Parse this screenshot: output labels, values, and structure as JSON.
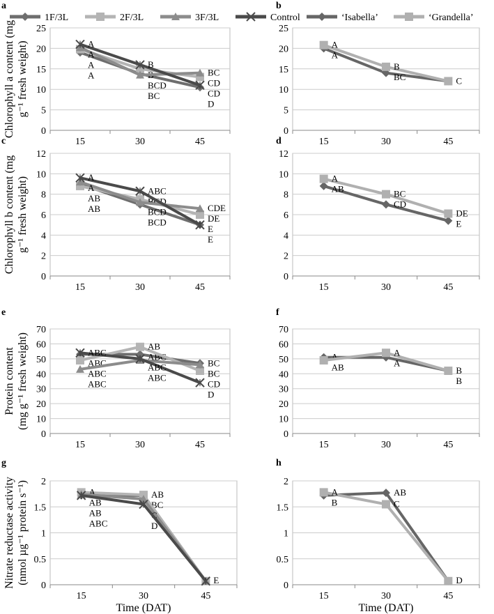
{
  "legend_main": [
    {
      "name": "1F/3L",
      "color": "#6e6e6e",
      "marker": "diamond"
    },
    {
      "name": "2F/3L",
      "color": "#b4b4b4",
      "marker": "square"
    },
    {
      "name": "3F/3L",
      "color": "#8c8c8c",
      "marker": "triangle"
    },
    {
      "name": "Control",
      "color": "#4a4a4a",
      "marker": "x"
    }
  ],
  "legend_cultivar": [
    {
      "name": "‘Isabella’",
      "color": "#666666",
      "marker": "diamond"
    },
    {
      "name": "‘Grandella’",
      "color": "#b0b0b0",
      "marker": "square"
    }
  ],
  "ylabels": {
    "a": [
      "Chlorophyll a content (mg",
      "g⁻¹ fresh weight)"
    ],
    "c": [
      "Chlorophyll b content (mg",
      "g⁻¹ fresh weight)"
    ],
    "e": [
      "Protein content",
      "(mg g⁻¹ fresh weight)"
    ],
    "g": [
      "Nitrate reductase activity",
      "(nmol µg⁻¹ protein s⁻¹)"
    ]
  },
  "xlabel": "Time (DAT)",
  "chart_data": [
    {
      "panel": "a",
      "type": "line",
      "x": [
        15,
        30,
        45
      ],
      "ylim": [
        0,
        25
      ],
      "yticks": [
        0,
        5,
        10,
        15,
        20,
        25
      ],
      "series": [
        {
          "name": "1F/3L",
          "values": [
            19,
            13.8,
            10.5
          ],
          "letters": [
            "A",
            "BCD",
            "D"
          ]
        },
        {
          "name": "2F/3L",
          "values": [
            19.8,
            15,
            13
          ],
          "letters": [
            "A",
            "B",
            "CD"
          ]
        },
        {
          "name": "3F/3L",
          "values": [
            20.2,
            13.5,
            14
          ],
          "letters": [
            "A",
            "BC",
            "BC"
          ]
        },
        {
          "name": "Control",
          "values": [
            21,
            16,
            11
          ],
          "letters": [
            "A",
            "B",
            "CD"
          ]
        }
      ]
    },
    {
      "panel": "b",
      "type": "line",
      "x": [
        15,
        30,
        45
      ],
      "ylim": [
        0,
        25
      ],
      "yticks": [
        0,
        5,
        10,
        15,
        20,
        25
      ],
      "series": [
        {
          "name": "‘Isabella’",
          "values": [
            20,
            14,
            12
          ],
          "letters": [
            "A",
            "BC",
            "C"
          ]
        },
        {
          "name": "‘Grandella’",
          "values": [
            20.8,
            15.5,
            12
          ],
          "letters": [
            "A",
            "B",
            ""
          ]
        }
      ]
    },
    {
      "panel": "c",
      "type": "line",
      "x": [
        15,
        30,
        45
      ],
      "ylim": [
        0,
        12
      ],
      "yticks": [
        0,
        2,
        4,
        6,
        8,
        10,
        12
      ],
      "series": [
        {
          "name": "1F/3L",
          "values": [
            9,
            7,
            5
          ],
          "letters": [
            "AB",
            "BCD",
            "E"
          ]
        },
        {
          "name": "2F/3L",
          "values": [
            8.8,
            7.5,
            6
          ],
          "letters": [
            "AB",
            "BCD",
            "DE"
          ]
        },
        {
          "name": "3F/3L",
          "values": [
            9.2,
            7.2,
            6.6
          ],
          "letters": [
            "A",
            "BCD",
            "CDE"
          ]
        },
        {
          "name": "Control",
          "values": [
            9.6,
            8.3,
            5
          ],
          "letters": [
            "A",
            "ABC",
            "E"
          ]
        }
      ]
    },
    {
      "panel": "d",
      "type": "line",
      "x": [
        15,
        30,
        45
      ],
      "ylim": [
        0,
        12
      ],
      "yticks": [
        0,
        2,
        4,
        6,
        8,
        10,
        12
      ],
      "series": [
        {
          "name": "‘Isabella’",
          "values": [
            8.8,
            7,
            5.4
          ],
          "letters": [
            "AB",
            "CD",
            "E"
          ]
        },
        {
          "name": "‘Grandella’",
          "values": [
            9.5,
            8,
            6.1
          ],
          "letters": [
            "A",
            "BC",
            "DE"
          ]
        }
      ]
    },
    {
      "panel": "e",
      "type": "line",
      "x": [
        15,
        30,
        45
      ],
      "ylim": [
        0,
        70
      ],
      "yticks": [
        0,
        10,
        20,
        30,
        40,
        50,
        60,
        70
      ],
      "series": [
        {
          "name": "1F/3L",
          "values": [
            53,
            53,
            47
          ],
          "letters": [
            "ABC",
            "ABC",
            "BC"
          ]
        },
        {
          "name": "2F/3L",
          "values": [
            49,
            58,
            42
          ],
          "letters": [
            "ABC",
            "AB",
            "CD"
          ]
        },
        {
          "name": "3F/3L",
          "values": [
            43,
            49,
            46
          ],
          "letters": [
            "ABC",
            "ABC",
            "BC"
          ]
        },
        {
          "name": "Control",
          "values": [
            54,
            50,
            34
          ],
          "letters": [
            "ABC",
            "ABC",
            "D"
          ]
        }
      ]
    },
    {
      "panel": "f",
      "type": "line",
      "x": [
        15,
        30,
        45
      ],
      "ylim": [
        0,
        70
      ],
      "yticks": [
        0,
        10,
        20,
        30,
        40,
        50,
        60,
        70
      ],
      "series": [
        {
          "name": "‘Isabella’",
          "values": [
            51,
            51,
            42
          ],
          "letters": [
            "A",
            "A",
            "B"
          ]
        },
        {
          "name": "‘Grandella’",
          "values": [
            49,
            54,
            42
          ],
          "letters": [
            "AB",
            "A",
            "B"
          ]
        }
      ]
    },
    {
      "panel": "g",
      "type": "line",
      "x": [
        15,
        30,
        45
      ],
      "ylim": [
        0,
        2
      ],
      "yticks": [
        0,
        0.5,
        1,
        1.5,
        2
      ],
      "series": [
        {
          "name": "1F/3L",
          "values": [
            1.72,
            1.72,
            0.07
          ],
          "letters": [
            "AB",
            "BC",
            "E"
          ]
        },
        {
          "name": "2F/3L",
          "values": [
            1.78,
            1.73,
            0.07
          ],
          "letters": [
            "A",
            "AB",
            ""
          ]
        },
        {
          "name": "3F/3L",
          "values": [
            1.74,
            1.65,
            0.07
          ],
          "letters": [
            "AB",
            "C",
            ""
          ]
        },
        {
          "name": "Control",
          "values": [
            1.72,
            1.55,
            0.07
          ],
          "letters": [
            "ABC",
            "D",
            ""
          ]
        }
      ]
    },
    {
      "panel": "h",
      "type": "line",
      "x": [
        15,
        30,
        45
      ],
      "ylim": [
        0,
        2
      ],
      "yticks": [
        0,
        0.5,
        1,
        1.5,
        2
      ],
      "series": [
        {
          "name": "‘Isabella’",
          "values": [
            1.72,
            1.77,
            0.07
          ],
          "letters": [
            "B",
            "AB",
            "D"
          ]
        },
        {
          "name": "‘Grandella’",
          "values": [
            1.78,
            1.55,
            0.07
          ],
          "letters": [
            "A",
            "C",
            ""
          ]
        }
      ]
    }
  ]
}
